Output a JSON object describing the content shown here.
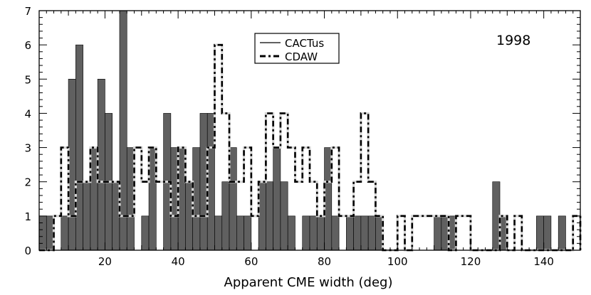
{
  "chart_data": {
    "type": "bar",
    "title": "",
    "annotation": "1998",
    "xlabel": "Apparent CME width (deg)",
    "ylabel": "",
    "xlim": [
      2,
      150
    ],
    "ylim": [
      0,
      7
    ],
    "xticks": [
      20,
      40,
      60,
      80,
      100,
      120,
      140
    ],
    "yticks": [
      0,
      1,
      2,
      3,
      4,
      5,
      6,
      7
    ],
    "bin_width": 2,
    "bin_starts": [
      2,
      4,
      6,
      8,
      10,
      12,
      14,
      16,
      18,
      20,
      22,
      24,
      26,
      28,
      30,
      32,
      34,
      36,
      38,
      40,
      42,
      44,
      46,
      48,
      50,
      52,
      54,
      56,
      58,
      60,
      62,
      64,
      66,
      68,
      70,
      72,
      74,
      76,
      78,
      80,
      82,
      84,
      86,
      88,
      90,
      92,
      94,
      96,
      98,
      100,
      102,
      104,
      106,
      108,
      110,
      112,
      114,
      116,
      118,
      120,
      122,
      124,
      126,
      128,
      130,
      132,
      134,
      136,
      138,
      140,
      142,
      144,
      146,
      148
    ],
    "series": [
      {
        "name": "CACTus",
        "style": "solid-filled",
        "color": "#606060",
        "values": [
          1,
          1,
          0,
          1,
          5,
          6,
          2,
          3,
          5,
          4,
          2,
          7,
          3,
          0,
          1,
          3,
          0,
          4,
          3,
          3,
          2,
          3,
          4,
          4,
          1,
          2,
          3,
          1,
          1,
          0,
          2,
          2,
          3,
          2,
          1,
          0,
          1,
          1,
          1,
          3,
          1,
          0,
          1,
          1,
          1,
          1,
          1,
          0,
          0,
          0,
          0,
          0,
          0,
          0,
          1,
          1,
          1,
          0,
          0,
          0,
          0,
          0,
          2,
          1,
          0,
          0,
          0,
          0,
          1,
          1,
          0,
          1,
          0,
          0
        ]
      },
      {
        "name": "CDAW",
        "style": "dashed",
        "color": "#000000",
        "values": [
          0,
          0,
          1,
          3,
          1,
          2,
          2,
          3,
          2,
          2,
          2,
          1,
          1,
          3,
          2,
          3,
          2,
          2,
          1,
          3,
          2,
          1,
          1,
          3,
          6,
          4,
          2,
          2,
          3,
          1,
          2,
          4,
          3,
          4,
          3,
          2,
          3,
          2,
          1,
          2,
          3,
          1,
          1,
          2,
          4,
          2,
          1,
          0,
          0,
          1,
          0,
          1,
          1,
          1,
          1,
          1,
          0,
          1,
          1,
          0,
          0,
          0,
          0,
          1,
          0,
          1,
          0,
          0,
          0,
          0,
          0,
          0,
          0,
          1
        ]
      }
    ],
    "legend": {
      "placement": "top-center",
      "entries": [
        "CACTus",
        "CDAW"
      ]
    },
    "grid": false
  }
}
